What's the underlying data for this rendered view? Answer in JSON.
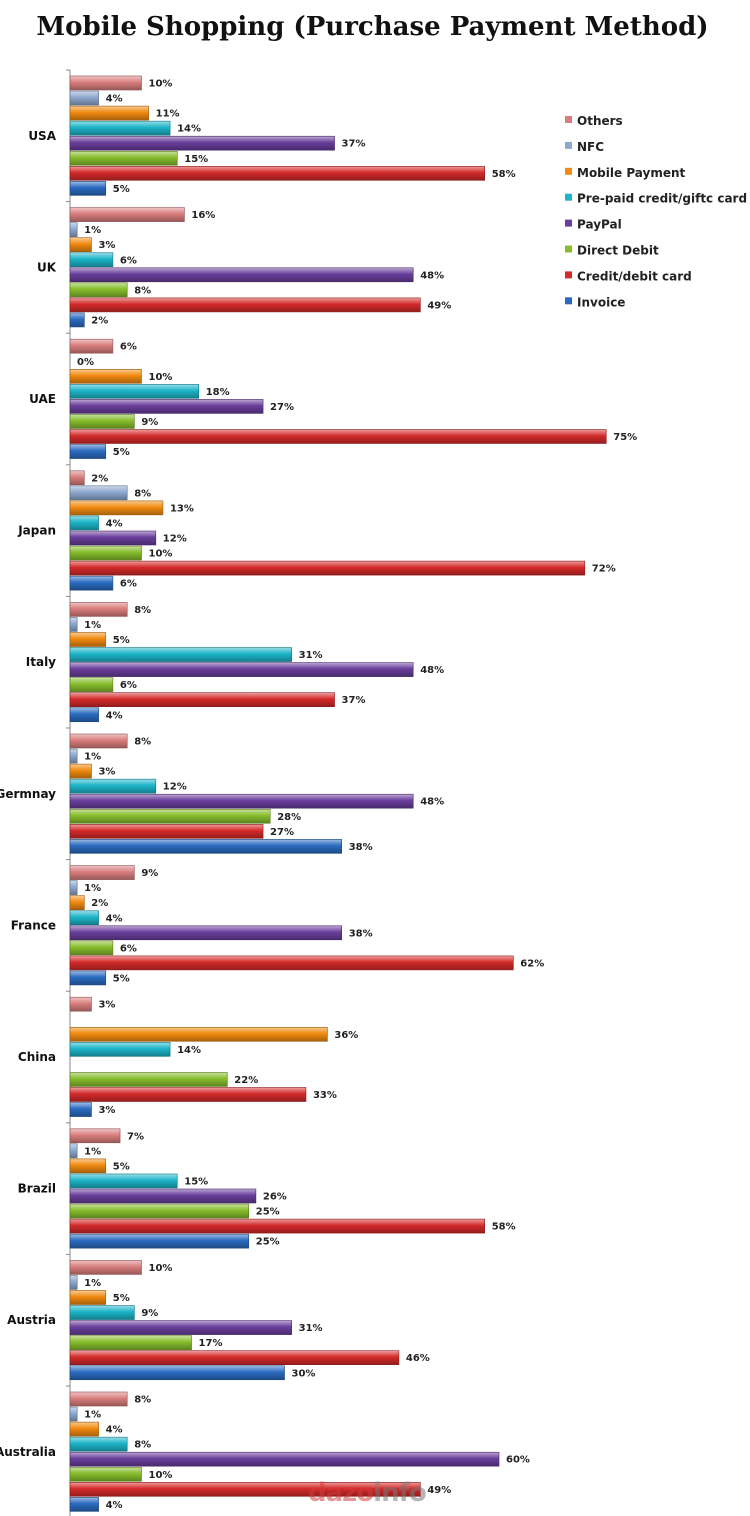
{
  "colors": {
    "Others": "#d97d7d",
    "NFC": "#8ea8cf",
    "Mobile Payment": "#f08a10",
    "Pre-paid credit/giftc card": "#1cb4c8",
    "PayPal": "#6a3e9c",
    "Direct Debit": "#86bd2c",
    "Credit/debit card": "#d42a2a",
    "Invoice": "#2a6bc0"
  },
  "watermark": {
    "part_a": "dazo",
    "part_b": "info"
  },
  "chart_data": {
    "type": "bar",
    "orientation": "horizontal",
    "title": "Mobile Shopping (Purchase Payment Method)",
    "unit": "%",
    "xlim": [
      0,
      80
    ],
    "grid": false,
    "legend_position": "top-right",
    "categories": [
      "USA",
      "UK",
      "UAE",
      "Japan",
      "Italy",
      "Germnay",
      "France",
      "China",
      "Brazil",
      "Austria",
      "Australia"
    ],
    "series": [
      {
        "name": "Others",
        "values": [
          10,
          16,
          6,
          2,
          8,
          8,
          9,
          3,
          7,
          10,
          8
        ]
      },
      {
        "name": "NFC",
        "values": [
          4,
          1,
          0,
          8,
          1,
          1,
          1,
          null,
          1,
          1,
          1
        ]
      },
      {
        "name": "Mobile Payment",
        "values": [
          11,
          3,
          10,
          13,
          5,
          3,
          2,
          36,
          5,
          5,
          4
        ]
      },
      {
        "name": "Pre-paid credit/giftc card",
        "values": [
          14,
          6,
          18,
          4,
          31,
          12,
          4,
          14,
          15,
          9,
          8
        ]
      },
      {
        "name": "PayPal",
        "values": [
          37,
          48,
          27,
          12,
          48,
          48,
          38,
          null,
          26,
          31,
          60
        ]
      },
      {
        "name": "Direct Debit",
        "values": [
          15,
          8,
          9,
          10,
          6,
          28,
          6,
          22,
          25,
          17,
          10
        ]
      },
      {
        "name": "Credit/debit card",
        "values": [
          58,
          49,
          75,
          72,
          37,
          27,
          62,
          33,
          58,
          46,
          49
        ]
      },
      {
        "name": "Invoice",
        "values": [
          5,
          2,
          5,
          6,
          4,
          38,
          5,
          3,
          25,
          30,
          4
        ]
      }
    ]
  }
}
